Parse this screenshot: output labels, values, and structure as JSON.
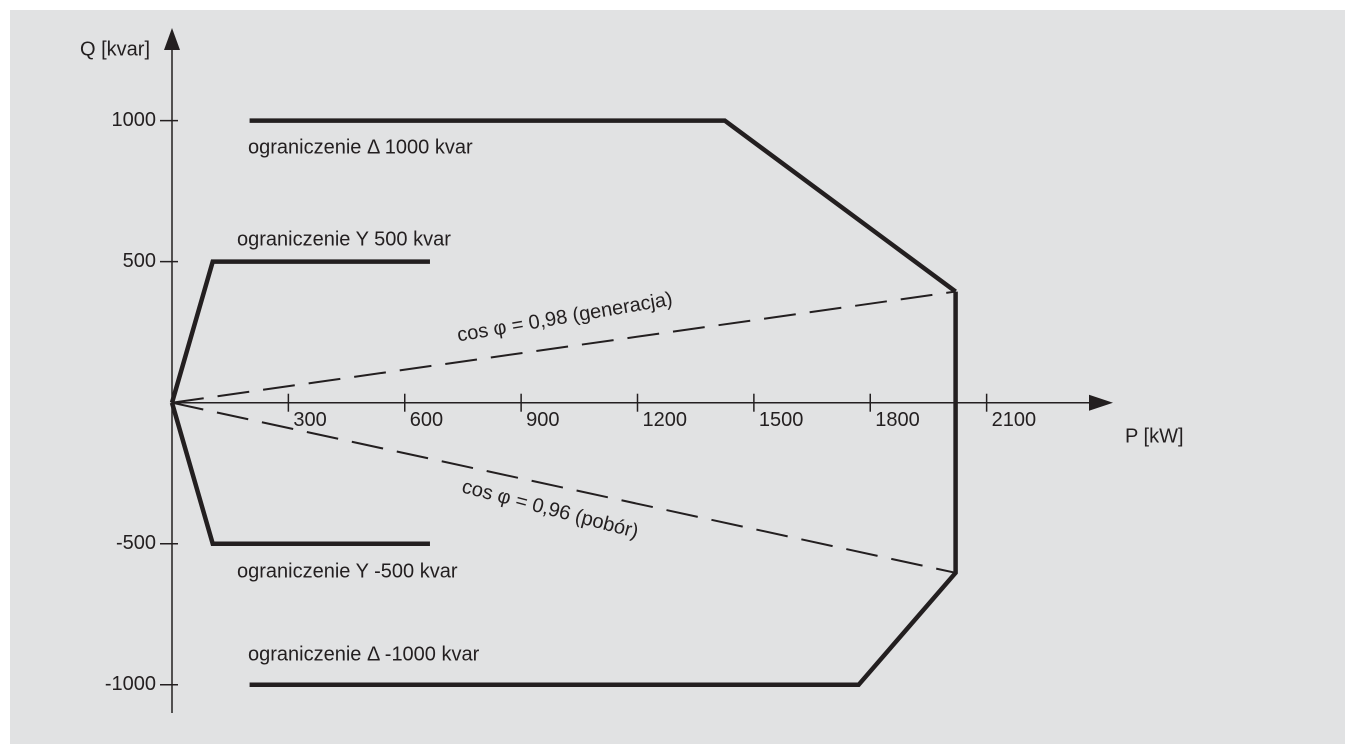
{
  "chart_data": {
    "type": "line",
    "x_label": "P [kW]",
    "y_label": "Q [kvar]",
    "xlim": [
      0,
      2400
    ],
    "ylim": [
      -1100,
      1300
    ],
    "xticks": [
      300,
      600,
      900,
      1200,
      1500,
      1800,
      2100
    ],
    "yticks": [
      -1000,
      -500,
      500,
      1000
    ],
    "series": [
      {
        "name": "ograniczenie Δ 1000 kvar",
        "color": "#231f20",
        "dash": false,
        "x": [
          200,
          1425,
          2020
        ],
        "values": [
          1000,
          1000,
          394
        ]
      },
      {
        "name": "ograniczenie Δ -1000 kvar",
        "color": "#231f20",
        "dash": false,
        "x": [
          2020,
          2020,
          1770,
          200
        ],
        "values": [
          394,
          -603,
          -1000,
          -1000
        ]
      },
      {
        "name": "ograniczenie Y 500 kvar",
        "color": "#231f20",
        "dash": false,
        "x": [
          0,
          105,
          665
        ],
        "values": [
          0,
          500,
          500
        ]
      },
      {
        "name": "ograniczenie Y -500 kvar",
        "color": "#231f20",
        "dash": false,
        "x": [
          0,
          105,
          665
        ],
        "values": [
          0,
          -500,
          -500
        ]
      },
      {
        "name": "cos φ = 0,98 (generacja)",
        "color": "#231f20",
        "dash": true,
        "x": [
          0,
          2020
        ],
        "values": [
          0,
          394
        ]
      },
      {
        "name": "cos φ = 0,96 (pobór)",
        "color": "#231f20",
        "dash": true,
        "x": [
          0,
          2020
        ],
        "values": [
          0,
          -603
        ]
      }
    ]
  }
}
